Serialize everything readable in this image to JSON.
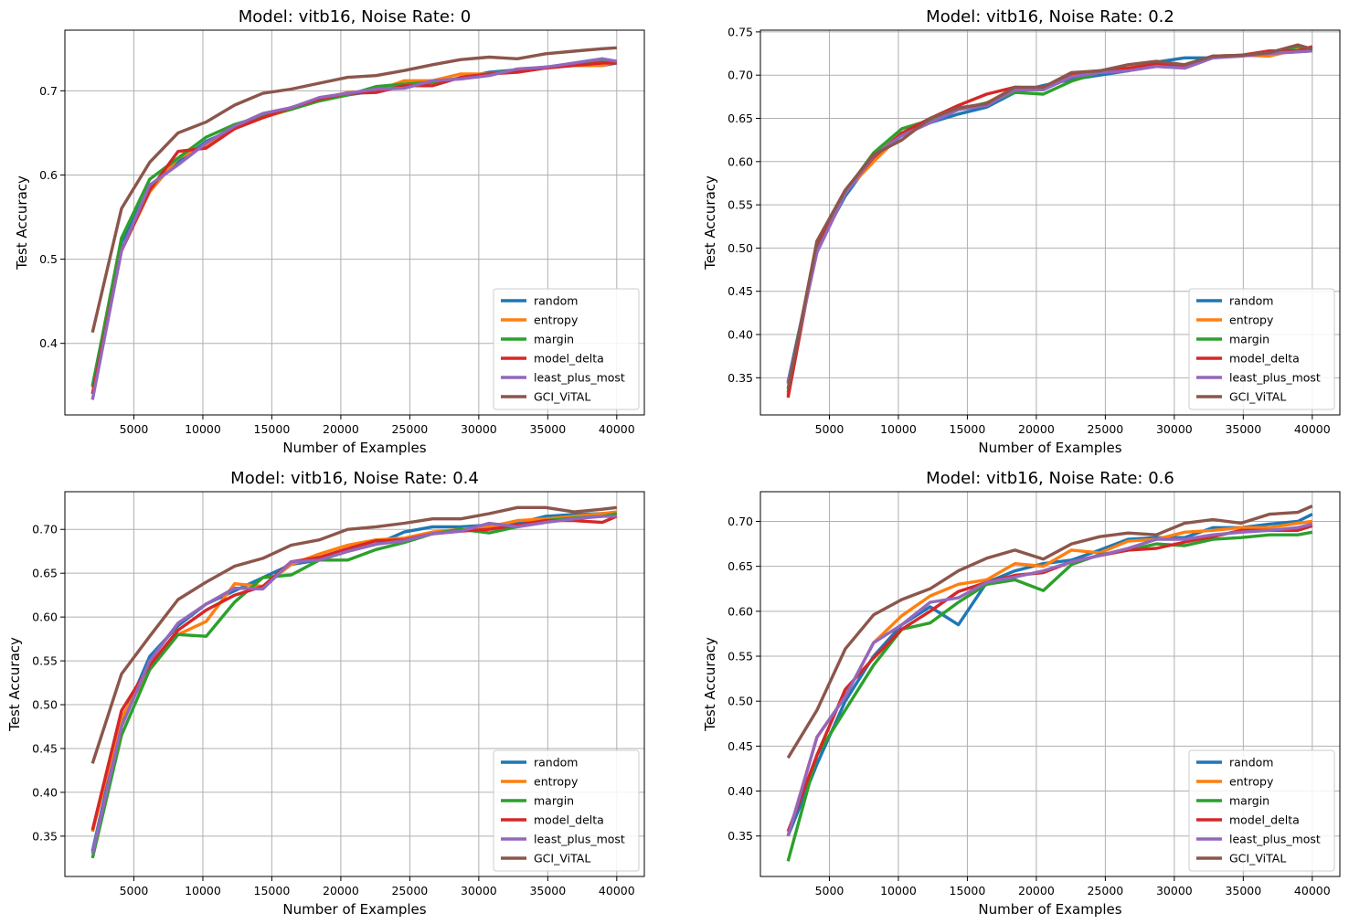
{
  "colors": {
    "random": "#1f77b4",
    "entropy": "#ff7f0e",
    "margin": "#2ca02c",
    "model_delta": "#d62728",
    "least_plus_most": "#9467bd",
    "GCI_ViTAL": "#8c564b",
    "grid": "#b0b0b0"
  },
  "chart_data": [
    {
      "type": "line",
      "title": "Model: vitb16, Noise Rate: 0",
      "xlabel": "Number of Examples",
      "ylabel": "Test Accuracy",
      "xlim": [
        0,
        42000
      ],
      "ylim": [
        0.315,
        0.772
      ],
      "xticks": [
        5000,
        10000,
        15000,
        20000,
        25000,
        30000,
        35000,
        40000
      ],
      "xtick_labels": [
        "5000",
        "10000",
        "15000",
        "20000",
        "25000",
        "30000",
        "35000",
        "40000"
      ],
      "yticks": [
        0.4,
        0.5,
        0.6,
        0.7
      ],
      "ytick_labels": [
        "0.4",
        "0.5",
        "0.6",
        "0.7"
      ],
      "grid": true,
      "legend": "bottom-right",
      "x": [
        2000,
        4100,
        6150,
        8200,
        10250,
        12300,
        14350,
        16400,
        18450,
        20500,
        22550,
        24600,
        26650,
        28700,
        30750,
        32800,
        34850,
        36900,
        38950,
        40000
      ],
      "series": [
        {
          "name": "random",
          "values": [
            0.35,
            0.52,
            0.585,
            0.615,
            0.64,
            0.655,
            0.67,
            0.68,
            0.69,
            0.695,
            0.7,
            0.705,
            0.71,
            0.715,
            0.722,
            0.725,
            0.728,
            0.73,
            0.73,
            0.733
          ]
        },
        {
          "name": "entropy",
          "values": [
            0.34,
            0.51,
            0.58,
            0.62,
            0.635,
            0.655,
            0.668,
            0.678,
            0.69,
            0.698,
            0.7,
            0.712,
            0.712,
            0.72,
            0.72,
            0.725,
            0.728,
            0.73,
            0.73,
            0.735
          ]
        },
        {
          "name": "margin",
          "values": [
            0.348,
            0.525,
            0.595,
            0.62,
            0.645,
            0.66,
            0.67,
            0.678,
            0.688,
            0.695,
            0.705,
            0.708,
            0.71,
            0.715,
            0.72,
            0.725,
            0.728,
            0.732,
            0.735,
            0.735
          ]
        },
        {
          "name": "model_delta",
          "values": [
            0.34,
            0.51,
            0.582,
            0.628,
            0.632,
            0.655,
            0.668,
            0.68,
            0.69,
            0.697,
            0.698,
            0.706,
            0.706,
            0.716,
            0.72,
            0.722,
            0.727,
            0.73,
            0.733,
            0.733
          ]
        },
        {
          "name": "least_plus_most",
          "values": [
            0.333,
            0.51,
            0.588,
            0.612,
            0.638,
            0.658,
            0.673,
            0.68,
            0.692,
            0.697,
            0.702,
            0.703,
            0.712,
            0.714,
            0.718,
            0.726,
            0.728,
            0.733,
            0.738,
            0.735
          ]
        },
        {
          "name": "GCI_ViTAL",
          "values": [
            0.413,
            0.56,
            0.615,
            0.65,
            0.663,
            0.683,
            0.697,
            0.702,
            0.709,
            0.716,
            0.718,
            0.724,
            0.731,
            0.737,
            0.74,
            0.738,
            0.744,
            0.747,
            0.75,
            0.751
          ]
        }
      ]
    },
    {
      "type": "line",
      "title": "Model: vitb16, Noise Rate: 0.2",
      "xlabel": "Number of Examples",
      "ylabel": "Test Accuracy",
      "xlim": [
        0,
        42000
      ],
      "ylim": [
        0.307,
        0.752
      ],
      "xticks": [
        5000,
        10000,
        15000,
        20000,
        25000,
        30000,
        35000,
        40000
      ],
      "xtick_labels": [
        "5000",
        "10000",
        "15000",
        "20000",
        "25000",
        "30000",
        "35000",
        "40000"
      ],
      "yticks": [
        0.35,
        0.4,
        0.45,
        0.5,
        0.55,
        0.6,
        0.65,
        0.7,
        0.75
      ],
      "ytick_labels": [
        "0.35",
        "0.40",
        "0.45",
        "0.50",
        "0.55",
        "0.60",
        "0.65",
        "0.70",
        "0.75"
      ],
      "grid": true,
      "legend": "bottom-right",
      "x": [
        2000,
        4100,
        6150,
        8200,
        10250,
        12300,
        14350,
        16400,
        18450,
        20500,
        22550,
        24600,
        26650,
        28700,
        30750,
        32800,
        34850,
        36900,
        38950,
        40000
      ],
      "series": [
        {
          "name": "random",
          "values": [
            0.345,
            0.5,
            0.56,
            0.605,
            0.63,
            0.645,
            0.655,
            0.663,
            0.68,
            0.688,
            0.695,
            0.7,
            0.705,
            0.715,
            0.72,
            0.72,
            0.723,
            0.725,
            0.727,
            0.728
          ]
        },
        {
          "name": "entropy",
          "values": [
            0.33,
            0.505,
            0.565,
            0.6,
            0.632,
            0.648,
            0.66,
            0.668,
            0.685,
            0.685,
            0.7,
            0.705,
            0.708,
            0.712,
            0.712,
            0.72,
            0.723,
            0.722,
            0.73,
            0.728
          ]
        },
        {
          "name": "margin",
          "values": [
            0.333,
            0.508,
            0.565,
            0.61,
            0.638,
            0.648,
            0.66,
            0.668,
            0.68,
            0.678,
            0.693,
            0.703,
            0.707,
            0.712,
            0.712,
            0.722,
            0.723,
            0.725,
            0.733,
            0.728
          ]
        },
        {
          "name": "model_delta",
          "values": [
            0.327,
            0.505,
            0.565,
            0.605,
            0.633,
            0.65,
            0.665,
            0.678,
            0.686,
            0.685,
            0.702,
            0.705,
            0.708,
            0.713,
            0.71,
            0.722,
            0.723,
            0.728,
            0.728,
            0.733
          ]
        },
        {
          "name": "least_plus_most",
          "values": [
            0.343,
            0.495,
            0.563,
            0.607,
            0.63,
            0.645,
            0.66,
            0.665,
            0.683,
            0.683,
            0.698,
            0.703,
            0.705,
            0.71,
            0.708,
            0.72,
            0.722,
            0.725,
            0.727,
            0.728
          ]
        },
        {
          "name": "GCI_ViTAL",
          "values": [
            0.337,
            0.508,
            0.567,
            0.608,
            0.625,
            0.65,
            0.662,
            0.667,
            0.686,
            0.686,
            0.703,
            0.705,
            0.712,
            0.716,
            0.712,
            0.722,
            0.723,
            0.726,
            0.735,
            0.73
          ]
        }
      ]
    },
    {
      "type": "line",
      "title": "Model: vitb16, Noise Rate: 0.4",
      "xlabel": "Number of Examples",
      "ylabel": "Test Accuracy",
      "xlim": [
        0,
        42000
      ],
      "ylim": [
        0.304,
        0.743
      ],
      "xticks": [
        5000,
        10000,
        15000,
        20000,
        25000,
        30000,
        35000,
        40000
      ],
      "xtick_labels": [
        "5000",
        "10000",
        "15000",
        "20000",
        "25000",
        "30000",
        "35000",
        "40000"
      ],
      "yticks": [
        0.35,
        0.4,
        0.45,
        0.5,
        0.55,
        0.6,
        0.65,
        0.7
      ],
      "ytick_labels": [
        "0.35",
        "0.40",
        "0.45",
        "0.50",
        "0.55",
        "0.60",
        "0.65",
        "0.70"
      ],
      "grid": true,
      "legend": "bottom-right",
      "x": [
        2000,
        4100,
        6150,
        8200,
        10250,
        12300,
        14350,
        16400,
        18450,
        20500,
        22550,
        24600,
        26650,
        28700,
        30750,
        32800,
        34850,
        36900,
        38950,
        40000
      ],
      "series": [
        {
          "name": "random",
          "values": [
            0.333,
            0.48,
            0.555,
            0.59,
            0.615,
            0.63,
            0.645,
            0.66,
            0.665,
            0.675,
            0.683,
            0.697,
            0.703,
            0.703,
            0.705,
            0.707,
            0.715,
            0.717,
            0.718,
            0.718
          ]
        },
        {
          "name": "entropy",
          "values": [
            0.355,
            0.485,
            0.54,
            0.58,
            0.595,
            0.638,
            0.635,
            0.66,
            0.672,
            0.682,
            0.688,
            0.69,
            0.697,
            0.7,
            0.703,
            0.71,
            0.712,
            0.715,
            0.718,
            0.72
          ]
        },
        {
          "name": "margin",
          "values": [
            0.325,
            0.465,
            0.54,
            0.58,
            0.578,
            0.617,
            0.645,
            0.648,
            0.665,
            0.665,
            0.677,
            0.685,
            0.695,
            0.7,
            0.696,
            0.703,
            0.71,
            0.713,
            0.715,
            0.718
          ]
        },
        {
          "name": "model_delta",
          "values": [
            0.357,
            0.493,
            0.545,
            0.585,
            0.608,
            0.625,
            0.635,
            0.663,
            0.668,
            0.678,
            0.687,
            0.688,
            0.695,
            0.698,
            0.7,
            0.705,
            0.71,
            0.71,
            0.708,
            0.715
          ]
        },
        {
          "name": "least_plus_most",
          "values": [
            0.33,
            0.475,
            0.55,
            0.593,
            0.615,
            0.633,
            0.632,
            0.663,
            0.665,
            0.675,
            0.683,
            0.687,
            0.695,
            0.698,
            0.707,
            0.703,
            0.708,
            0.712,
            0.715,
            0.715
          ]
        },
        {
          "name": "GCI_ViTAL",
          "values": [
            0.433,
            0.535,
            0.578,
            0.62,
            0.64,
            0.658,
            0.667,
            0.682,
            0.688,
            0.7,
            0.703,
            0.707,
            0.712,
            0.712,
            0.718,
            0.725,
            0.725,
            0.72,
            0.723,
            0.725
          ]
        }
      ]
    },
    {
      "type": "line",
      "title": "Model: vitb16, Noise Rate: 0.6",
      "xlabel": "Number of Examples",
      "ylabel": "Test Accuracy",
      "xlim": [
        0,
        42000
      ],
      "ylim": [
        0.305,
        0.733
      ],
      "xticks": [
        5000,
        10000,
        15000,
        20000,
        25000,
        30000,
        35000,
        40000
      ],
      "xtick_labels": [
        "5000",
        "10000",
        "15000",
        "20000",
        "25000",
        "30000",
        "35000",
        "40000"
      ],
      "yticks": [
        0.35,
        0.4,
        0.45,
        0.5,
        0.55,
        0.6,
        0.65,
        0.7
      ],
      "ytick_labels": [
        "0.35",
        "0.40",
        "0.45",
        "0.50",
        "0.55",
        "0.60",
        "0.65",
        "0.70"
      ],
      "grid": true,
      "legend": "bottom-right",
      "x": [
        2000,
        4100,
        6150,
        8200,
        10250,
        12300,
        14350,
        16400,
        18450,
        20500,
        22550,
        24600,
        26650,
        28700,
        30750,
        32800,
        34850,
        36900,
        38950,
        40000
      ],
      "series": [
        {
          "name": "random",
          "values": [
            0.35,
            0.43,
            0.5,
            0.55,
            0.585,
            0.605,
            0.585,
            0.632,
            0.645,
            0.653,
            0.657,
            0.668,
            0.68,
            0.682,
            0.682,
            0.693,
            0.693,
            0.697,
            0.7,
            0.708
          ]
        },
        {
          "name": "entropy",
          "values": [
            0.35,
            0.46,
            0.505,
            0.565,
            0.595,
            0.617,
            0.63,
            0.635,
            0.653,
            0.65,
            0.668,
            0.665,
            0.678,
            0.68,
            0.688,
            0.69,
            0.693,
            0.693,
            0.698,
            0.7
          ]
        },
        {
          "name": "margin",
          "values": [
            0.322,
            0.44,
            0.49,
            0.54,
            0.58,
            0.587,
            0.61,
            0.63,
            0.635,
            0.623,
            0.652,
            0.663,
            0.668,
            0.675,
            0.673,
            0.68,
            0.682,
            0.685,
            0.685,
            0.688
          ]
        },
        {
          "name": "model_delta",
          "values": [
            0.355,
            0.44,
            0.513,
            0.548,
            0.58,
            0.6,
            0.622,
            0.632,
            0.64,
            0.643,
            0.655,
            0.662,
            0.668,
            0.67,
            0.677,
            0.683,
            0.69,
            0.69,
            0.69,
            0.695
          ]
        },
        {
          "name": "least_plus_most",
          "values": [
            0.35,
            0.46,
            0.505,
            0.565,
            0.585,
            0.61,
            0.615,
            0.632,
            0.638,
            0.645,
            0.655,
            0.662,
            0.67,
            0.68,
            0.68,
            0.685,
            0.688,
            0.69,
            0.693,
            0.697
          ]
        },
        {
          "name": "GCI_ViTAL",
          "values": [
            0.437,
            0.49,
            0.558,
            0.596,
            0.613,
            0.625,
            0.645,
            0.659,
            0.668,
            0.658,
            0.675,
            0.683,
            0.687,
            0.685,
            0.698,
            0.702,
            0.698,
            0.708,
            0.71,
            0.717
          ]
        }
      ]
    }
  ]
}
